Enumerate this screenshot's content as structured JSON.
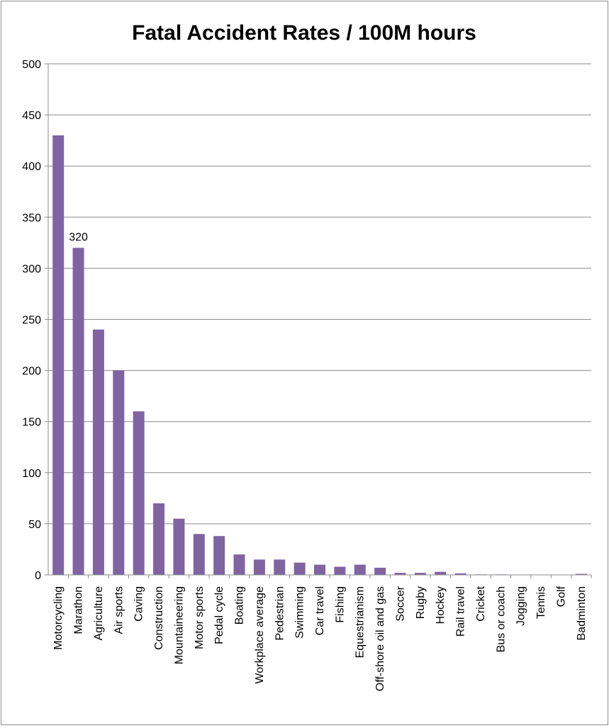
{
  "chart_data": {
    "type": "bar",
    "title": "Fatal Accident Rates / 100M hours",
    "xlabel": "",
    "ylabel": "",
    "ylim": [
      0,
      500
    ],
    "yticks": [
      "0",
      "50",
      "100",
      "150",
      "200",
      "250",
      "300",
      "350",
      "400",
      "450",
      "500"
    ],
    "grid": true,
    "legend": "none",
    "bar_color": "#8064a2",
    "categories": [
      "Motorcycling",
      "Marathon",
      "Agriculture",
      "Air sports",
      "Caving",
      "Construction",
      "Mountaineering",
      "Motor sports",
      "Pedal cycle",
      "Boating",
      "Workplace average",
      "Pedestrian",
      "Swimming",
      "Car travel",
      "Fishing",
      "Equestrianism",
      "Off-shore oil and gas",
      "Soccer",
      "Rugby",
      "Hockey",
      "Rail travel",
      "Cricket",
      "Bus or coach",
      "Jogging",
      "Tennis",
      "Golf",
      "Badminton"
    ],
    "values": [
      430,
      320,
      240,
      200,
      160,
      70,
      55,
      40,
      38,
      20,
      15,
      15,
      12,
      10,
      8,
      10,
      7,
      2,
      2,
      3,
      1.5,
      0.5,
      0.5,
      0.2,
      0.2,
      0.1,
      1
    ],
    "data_labels": [
      {
        "index": 1,
        "text": "320"
      }
    ]
  }
}
